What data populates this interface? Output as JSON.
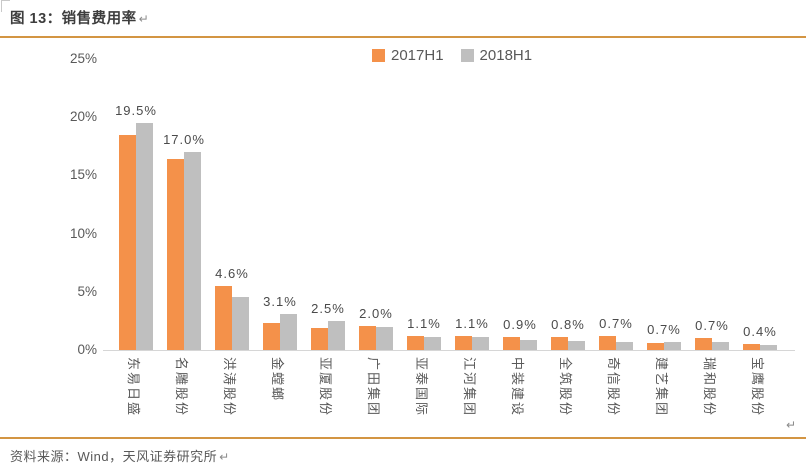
{
  "document": {
    "figure_label": "图 13：销售费用率",
    "paragraph_mark": "↵",
    "source_note": "资料来源：Wind，天风证券研究所",
    "accent_rule_color": "#D39543"
  },
  "chart_data": {
    "type": "bar",
    "title": "销售费用率",
    "categories": [
      "东易日盛",
      "名雕股份",
      "洪涛股份",
      "金螳螂",
      "亚厦股份",
      "广田集团",
      "亚泰国际",
      "江河集团",
      "中装建设",
      "全筑股份",
      "奇信股份",
      "建艺集团",
      "瑞和股份",
      "宝鹰股份"
    ],
    "series": [
      {
        "name": "2017H1",
        "color": "#F4914A",
        "values": [
          18.5,
          16.4,
          5.5,
          2.3,
          1.9,
          2.1,
          1.2,
          1.2,
          1.1,
          1.1,
          1.2,
          0.6,
          1.0,
          0.5
        ]
      },
      {
        "name": "2018H1",
        "color": "#BFBFBF",
        "values": [
          19.5,
          17.0,
          4.6,
          3.1,
          2.5,
          2.0,
          1.1,
          1.1,
          0.9,
          0.8,
          0.7,
          0.7,
          0.7,
          0.4
        ]
      }
    ],
    "data_labels": [
      "19.5%",
      "17.0%",
      "4.6%",
      "3.1%",
      "2.5%",
      "2.0%",
      "1.1%",
      "1.1%",
      "0.9%",
      "0.8%",
      "0.7%",
      "0.7%",
      "0.7%",
      "0.4%"
    ],
    "data_label_series": "2018H1",
    "y_ticks": [
      {
        "label": "25%",
        "value": 25
      },
      {
        "label": "20%",
        "value": 20
      },
      {
        "label": "15%",
        "value": 15
      },
      {
        "label": "10%",
        "value": 10
      },
      {
        "label": "5%",
        "value": 5
      },
      {
        "label": "0%",
        "value": 0
      }
    ],
    "ylim": [
      0,
      25
    ],
    "grid": false,
    "legend_position": "top-center"
  }
}
